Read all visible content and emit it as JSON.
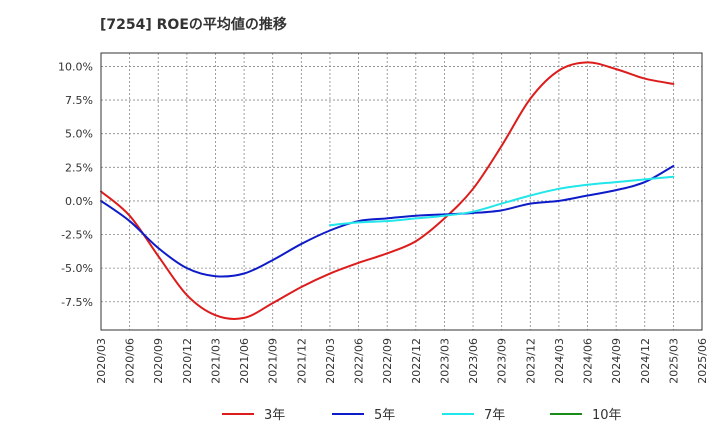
{
  "chart_data": {
    "type": "line",
    "title": "[7254]  ROEの平均値の推移",
    "xlabel": "",
    "ylabel": "",
    "ylim": [
      -9.6,
      11.0
    ],
    "x": [
      "2020/03",
      "2020/06",
      "2020/09",
      "2020/12",
      "2021/03",
      "2021/06",
      "2021/09",
      "2021/12",
      "2022/03",
      "2022/06",
      "2022/09",
      "2022/12",
      "2023/03",
      "2023/06",
      "2023/09",
      "2023/12",
      "2024/03",
      "2024/06",
      "2024/09",
      "2024/12",
      "2025/03",
      "2025/06"
    ],
    "y_ticks": [
      10.0,
      7.5,
      5.0,
      2.5,
      0.0,
      -2.5,
      -5.0,
      -7.5
    ],
    "y_tick_labels": [
      "10.0%",
      "7.5%",
      "5.0%",
      "2.5%",
      "0.0%",
      "-2.5%",
      "-5.0%",
      "-7.5%"
    ],
    "grid": true,
    "legend_position": "bottom",
    "series": [
      {
        "name": "3年",
        "color": "#dd1c1c",
        "values": [
          0.7,
          -1.1,
          -4.1,
          -7.0,
          -8.5,
          -8.7,
          -7.6,
          -6.4,
          -5.4,
          -4.6,
          -3.9,
          -3.0,
          -1.3,
          0.9,
          4.1,
          7.6,
          9.7,
          10.3,
          9.8,
          9.1,
          8.7,
          null
        ]
      },
      {
        "name": "5年",
        "color": "#0e1bc9",
        "values": [
          0.0,
          -1.5,
          -3.5,
          -5.0,
          -5.6,
          -5.4,
          -4.4,
          -3.2,
          -2.2,
          -1.5,
          -1.3,
          -1.1,
          -1.0,
          -0.9,
          -0.7,
          -0.2,
          0.0,
          0.4,
          0.8,
          1.4,
          2.6,
          null
        ]
      },
      {
        "name": "7年",
        "color": "#21e6ea",
        "values": [
          null,
          null,
          null,
          null,
          null,
          null,
          null,
          null,
          -1.8,
          -1.6,
          -1.5,
          -1.3,
          -1.1,
          -0.8,
          -0.2,
          0.4,
          0.9,
          1.2,
          1.4,
          1.6,
          1.8,
          null
        ]
      },
      {
        "name": "10年",
        "color": "#1a8a1a",
        "values": [
          null,
          null,
          null,
          null,
          null,
          null,
          null,
          null,
          null,
          null,
          null,
          null,
          null,
          null,
          null,
          null,
          null,
          null,
          null,
          null,
          null,
          null
        ]
      }
    ]
  }
}
